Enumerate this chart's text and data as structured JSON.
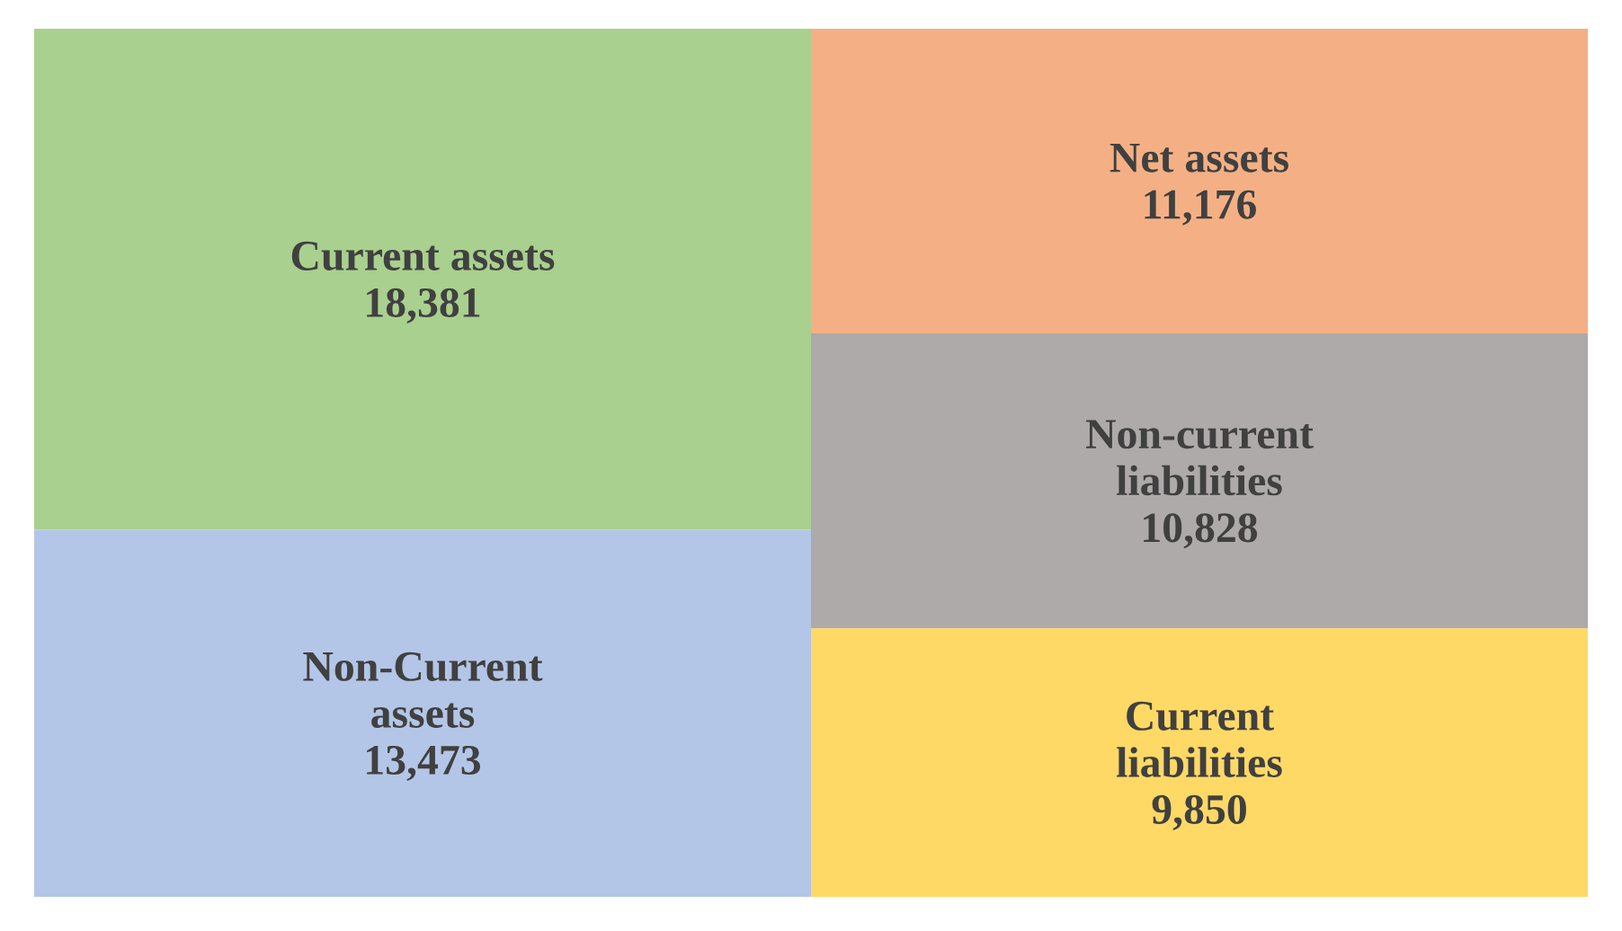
{
  "chart_data": {
    "type": "other",
    "categories": [
      "Current assets",
      "Non-Current assets",
      "Net assets",
      "Non-current liabilities",
      "Current liabilities"
    ],
    "series": [
      {
        "values": [
          18381,
          13473,
          null,
          null,
          null
        ],
        "value_labels": [
          "18,381",
          "13,473",
          null,
          null,
          null
        ],
        "colors": [
          "#a9d08e",
          "#b4c6e7",
          null,
          null,
          null
        ]
      },
      {
        "values": [
          null,
          null,
          11176,
          10828,
          9850
        ],
        "value_labels": [
          null,
          null,
          "11,176",
          "10,828",
          "9,850"
        ],
        "colors": [
          null,
          null,
          "#f4b084",
          "#aeaaaa",
          "#ffd966"
        ]
      }
    ]
  }
}
